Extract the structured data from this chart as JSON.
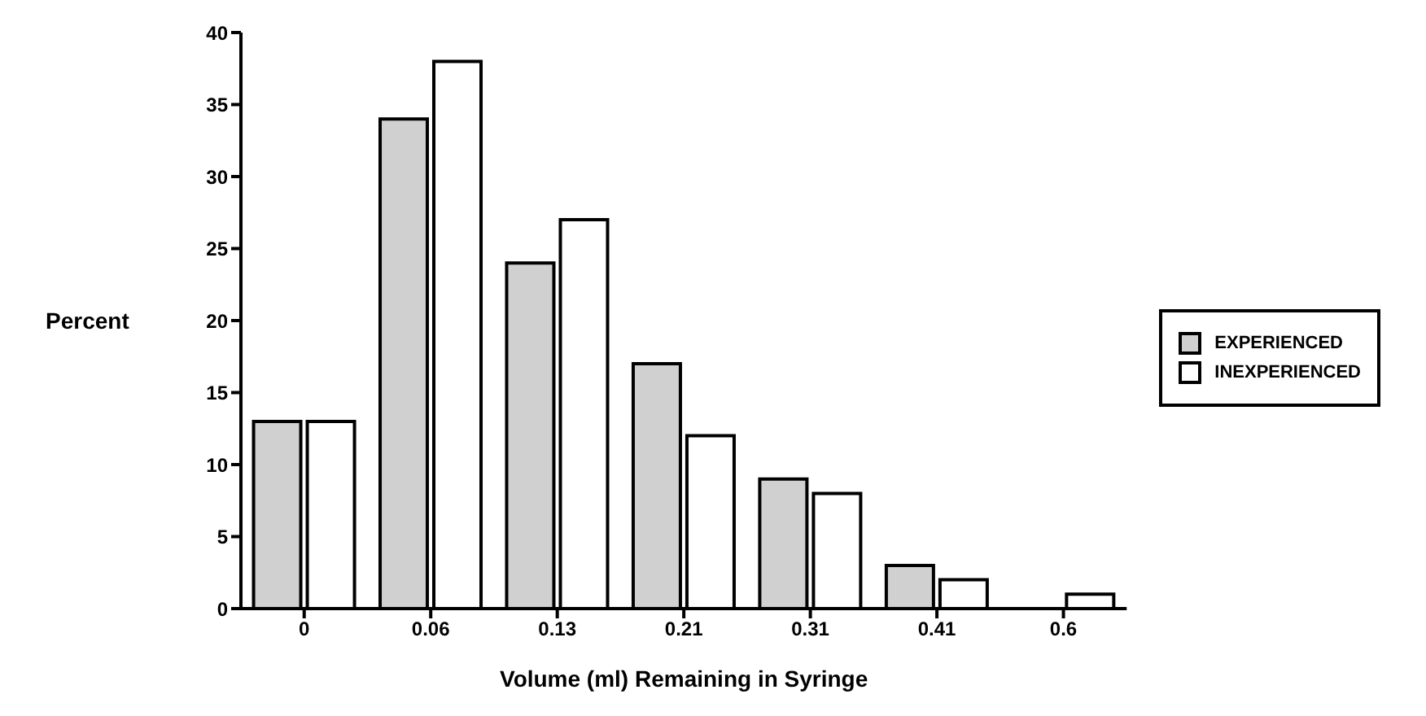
{
  "chart_data": {
    "type": "bar",
    "xlabel": "Volume (ml) Remaining in Syringe",
    "ylabel": "Percent",
    "categories": [
      "0",
      "0.06",
      "0.13",
      "0.21",
      "0.31",
      "0.41",
      "0.6"
    ],
    "series": [
      {
        "name": "EXPERIENCED",
        "color": "#d0d0d0",
        "values": [
          13,
          34,
          24,
          17,
          9,
          3,
          0
        ]
      },
      {
        "name": "INEXPERIENCED",
        "color": "#ffffff",
        "values": [
          13,
          38,
          27,
          12,
          8,
          2,
          1
        ]
      }
    ],
    "ylim": [
      0,
      40
    ],
    "yticks": [
      0,
      5,
      10,
      15,
      20,
      25,
      30,
      35,
      40
    ],
    "grid": false,
    "legend": "right"
  }
}
